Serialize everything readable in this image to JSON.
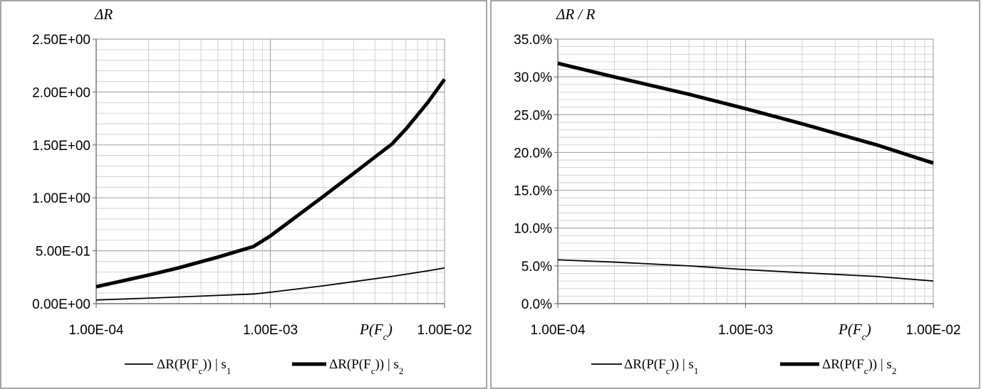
{
  "chart_data": [
    {
      "type": "line",
      "title": "",
      "xscale": "log",
      "xlim": [
        0.0001,
        0.01
      ],
      "ylim": [
        0,
        2.5
      ],
      "x_tick_labels": [
        "1.00E-04",
        "1.00E-03",
        "1.00E-02"
      ],
      "y_tick_labels": [
        "0.00E+00",
        "5.00E-01",
        "1.00E+00",
        "1.50E+00",
        "2.00E+00",
        "2.50E+00"
      ],
      "xlabel": "P(F_c)",
      "ylabel": "ΔR",
      "grid": true,
      "legend": "bottom",
      "series": [
        {
          "name": "ΔR(P(F_c)) | s_1",
          "style": "thin",
          "x": [
            0.0001,
            0.0002,
            0.0003,
            0.0005,
            0.0008,
            0.001,
            0.002,
            0.003,
            0.005,
            0.008,
            0.01
          ],
          "y": [
            0.035,
            0.052,
            0.063,
            0.078,
            0.091,
            0.108,
            0.168,
            0.208,
            0.258,
            0.31,
            0.338
          ]
        },
        {
          "name": "ΔR(P(F_c)) | s_2",
          "style": "thick",
          "x": [
            0.0001,
            0.0002,
            0.0003,
            0.0005,
            0.0008,
            0.001,
            0.002,
            0.003,
            0.005,
            0.006,
            0.008,
            0.01
          ],
          "y": [
            0.16,
            0.27,
            0.34,
            0.44,
            0.54,
            0.64,
            1.01,
            1.23,
            1.51,
            1.65,
            1.9,
            2.12
          ]
        }
      ]
    },
    {
      "type": "line",
      "title": "",
      "xscale": "log",
      "xlim": [
        0.0001,
        0.01
      ],
      "ylim": [
        0,
        35
      ],
      "x_tick_labels": [
        "1.00E-04",
        "1.00E-03",
        "1.00E-02"
      ],
      "y_tick_labels": [
        "0.0%",
        "5.0%",
        "10.0%",
        "15.0%",
        "20.0%",
        "25.0%",
        "30.0%",
        "35.0%"
      ],
      "xlabel": "P(F_c)",
      "ylabel": "ΔR / R",
      "grid": true,
      "legend": "bottom",
      "series": [
        {
          "name": "ΔR(P(F_c)) | s_1",
          "style": "thin",
          "x": [
            0.0001,
            0.0002,
            0.0005,
            0.001,
            0.002,
            0.005,
            0.01
          ],
          "y": [
            5.8,
            5.5,
            5.0,
            4.5,
            4.1,
            3.6,
            3.0
          ]
        },
        {
          "name": "ΔR(P(F_c)) | s_2",
          "style": "thick",
          "x": [
            0.0001,
            0.0002,
            0.0005,
            0.001,
            0.002,
            0.005,
            0.01
          ],
          "y": [
            31.8,
            30.0,
            27.7,
            25.8,
            23.8,
            21.0,
            18.6
          ]
        }
      ]
    }
  ]
}
